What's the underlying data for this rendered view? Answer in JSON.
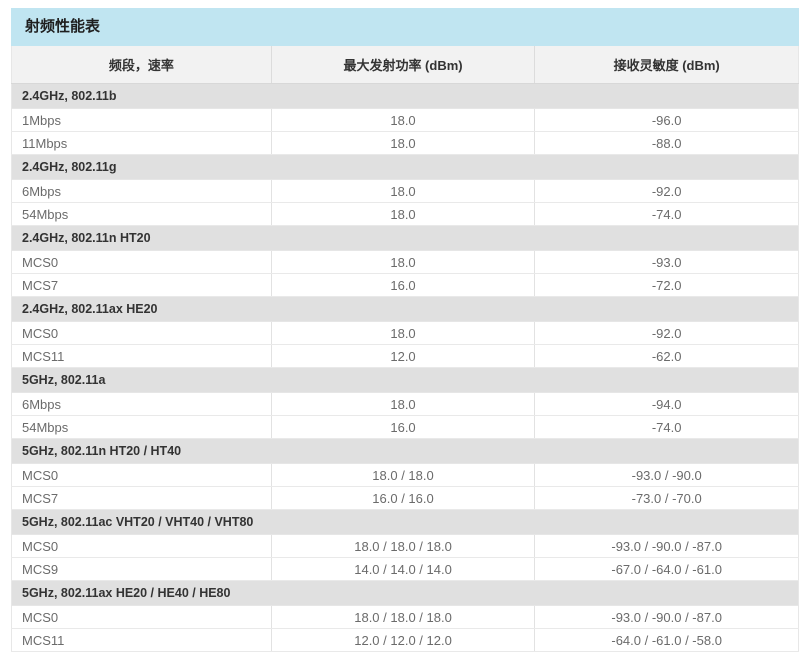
{
  "title": "射频性能表",
  "accent_color": "#c0e5f1",
  "header_bg_color": "#f2f2f2",
  "section_bg_color": "#e0e0e0",
  "table": {
    "columns": [
      "频段，速率",
      "最大发射功率 (dBm)",
      "接收灵敏度 (dBm)"
    ],
    "sections": [
      {
        "label": "2.4GHz, 802.11b",
        "rows": [
          [
            "1Mbps",
            "18.0",
            "-96.0"
          ],
          [
            "11Mbps",
            "18.0",
            "-88.0"
          ]
        ]
      },
      {
        "label": "2.4GHz, 802.11g",
        "rows": [
          [
            "6Mbps",
            "18.0",
            "-92.0"
          ],
          [
            "54Mbps",
            "18.0",
            "-74.0"
          ]
        ]
      },
      {
        "label": "2.4GHz, 802.11n HT20",
        "rows": [
          [
            "MCS0",
            "18.0",
            "-93.0"
          ],
          [
            "MCS7",
            "16.0",
            "-72.0"
          ]
        ]
      },
      {
        "label": "2.4GHz, 802.11ax HE20",
        "rows": [
          [
            "MCS0",
            "18.0",
            "-92.0"
          ],
          [
            "MCS11",
            "12.0",
            "-62.0"
          ]
        ]
      },
      {
        "label": "5GHz, 802.11a",
        "rows": [
          [
            "6Mbps",
            "18.0",
            "-94.0"
          ],
          [
            "54Mbps",
            "16.0",
            "-74.0"
          ]
        ]
      },
      {
        "label": "5GHz, 802.11n HT20 / HT40",
        "rows": [
          [
            "MCS0",
            "18.0 / 18.0",
            "-93.0 / -90.0"
          ],
          [
            "MCS7",
            "16.0 / 16.0",
            "-73.0 / -70.0"
          ]
        ]
      },
      {
        "label": "5GHz, 802.11ac VHT20 / VHT40 / VHT80",
        "rows": [
          [
            "MCS0",
            "18.0 / 18.0 / 18.0",
            "-93.0 / -90.0 / -87.0"
          ],
          [
            "MCS9",
            "14.0 / 14.0 / 14.0",
            "-67.0 / -64.0 / -61.0"
          ]
        ]
      },
      {
        "label": "5GHz, 802.11ax HE20 / HE40 / HE80",
        "rows": [
          [
            "MCS0",
            "18.0 / 18.0 / 18.0",
            "-93.0 / -90.0 / -87.0"
          ],
          [
            "MCS11",
            "12.0 / 12.0 / 12.0",
            "-64.0 / -61.0 / -58.0"
          ]
        ]
      }
    ]
  }
}
